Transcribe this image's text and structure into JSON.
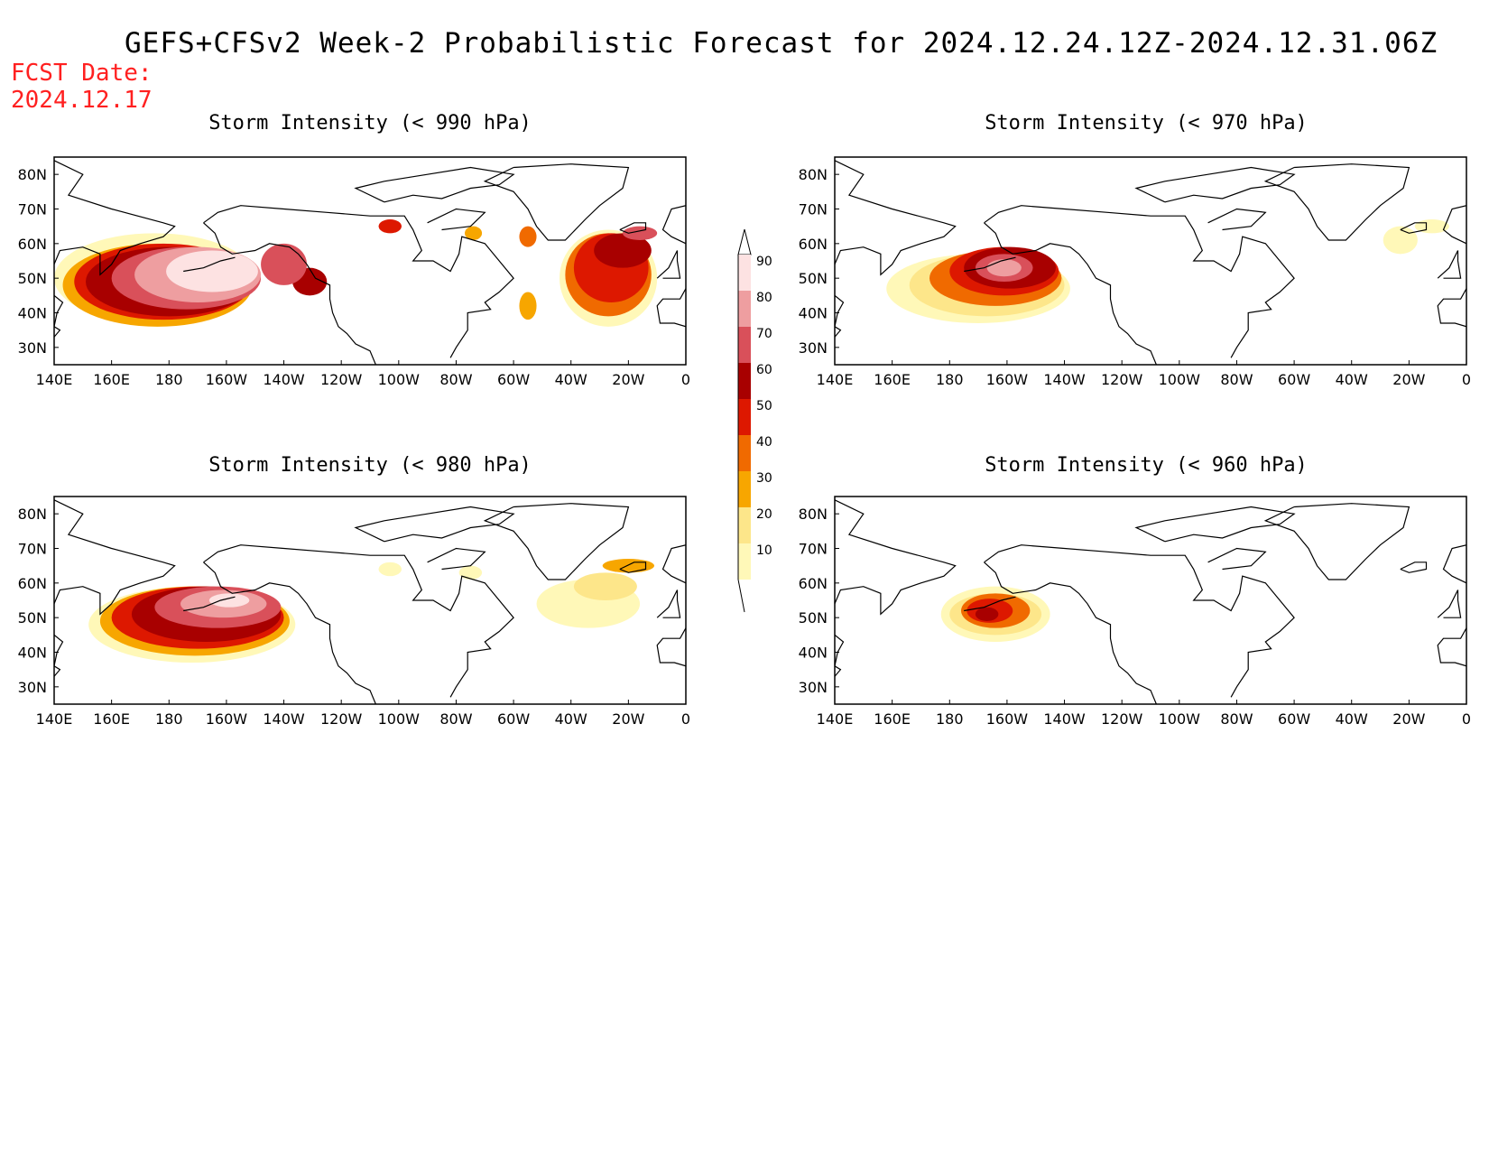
{
  "header": {
    "title": "GEFS+CFSv2 Week-2 Probabilistic Forecast for 2024.12.24.12Z-2024.12.31.06Z",
    "fcst_label": "FCST Date:",
    "fcst_date": "2024.12.17"
  },
  "axes": {
    "lon_labels": [
      "140E",
      "160E",
      "180",
      "160W",
      "140W",
      "120W",
      "100W",
      "80W",
      "60W",
      "40W",
      "20W",
      "0"
    ],
    "lat_labels": [
      "80N",
      "70N",
      "60N",
      "50N",
      "40N",
      "30N"
    ],
    "lon_range": [
      140,
      360
    ],
    "lat_range": [
      25,
      85
    ]
  },
  "colorbar": {
    "levels": [
      10,
      20,
      30,
      40,
      50,
      60,
      70,
      80,
      90
    ],
    "labels": [
      "10",
      "20",
      "30",
      "40",
      "50",
      "60",
      "70",
      "80",
      "90"
    ],
    "colors": [
      "#fff8b8",
      "#fde68a",
      "#f7a600",
      "#f06a00",
      "#dd1800",
      "#a80000",
      "#d9505a",
      "#ee9ea0",
      "#fde2e2"
    ]
  },
  "panels": [
    {
      "id": "990",
      "title": "Storm Intensity (< 990 hPa)",
      "regions": [
        {
          "level": 10,
          "lon": 175,
          "lat": 50,
          "rlon": 35,
          "rlat": 13
        },
        {
          "level": 30,
          "lon": 176,
          "lat": 48,
          "rlon": 33,
          "rlat": 12
        },
        {
          "level": 50,
          "lon": 178,
          "lat": 49,
          "rlon": 31,
          "rlat": 11
        },
        {
          "level": 60,
          "lon": 180,
          "lat": 49,
          "rlon": 29,
          "rlat": 10
        },
        {
          "level": 70,
          "lon": 186,
          "lat": 50,
          "rlon": 26,
          "rlat": 9
        },
        {
          "level": 80,
          "lon": 190,
          "lat": 51,
          "rlon": 22,
          "rlat": 8
        },
        {
          "level": 90,
          "lon": 195,
          "lat": 52,
          "rlon": 16,
          "rlat": 6
        },
        {
          "level": 60,
          "lon": 229,
          "lat": 49,
          "rlon": 6,
          "rlat": 4
        },
        {
          "level": 70,
          "lon": 220,
          "lat": 54,
          "rlon": 8,
          "rlat": 6
        },
        {
          "level": 50,
          "lon": 257,
          "lat": 65,
          "rlon": 4,
          "rlat": 2
        },
        {
          "level": 30,
          "lon": 286,
          "lat": 63,
          "rlon": 3,
          "rlat": 2
        },
        {
          "level": 40,
          "lon": 305,
          "lat": 62,
          "rlon": 3,
          "rlat": 3
        },
        {
          "level": 30,
          "lon": 305,
          "lat": 42,
          "rlon": 3,
          "rlat": 4
        },
        {
          "level": 10,
          "lon": 333,
          "lat": 50,
          "rlon": 17,
          "rlat": 14
        },
        {
          "level": 40,
          "lon": 333,
          "lat": 51,
          "rlon": 15,
          "rlat": 12
        },
        {
          "level": 50,
          "lon": 334,
          "lat": 53,
          "rlon": 13,
          "rlat": 10
        },
        {
          "level": 60,
          "lon": 338,
          "lat": 58,
          "rlon": 10,
          "rlat": 5
        },
        {
          "level": 70,
          "lon": 344,
          "lat": 63,
          "rlon": 6,
          "rlat": 2
        }
      ]
    },
    {
      "id": "970",
      "title": "Storm Intensity (< 970 hPa)",
      "regions": [
        {
          "level": 10,
          "lon": 190,
          "lat": 47,
          "rlon": 32,
          "rlat": 10
        },
        {
          "level": 20,
          "lon": 193,
          "lat": 48,
          "rlon": 27,
          "rlat": 9
        },
        {
          "level": 40,
          "lon": 196,
          "lat": 50,
          "rlon": 23,
          "rlat": 8
        },
        {
          "level": 50,
          "lon": 199,
          "lat": 52,
          "rlon": 19,
          "rlat": 7
        },
        {
          "level": 60,
          "lon": 201,
          "lat": 53,
          "rlon": 16,
          "rlat": 6
        },
        {
          "level": 70,
          "lon": 199,
          "lat": 53,
          "rlon": 10,
          "rlat": 4
        },
        {
          "level": 80,
          "lon": 199,
          "lat": 53,
          "rlon": 6,
          "rlat": 2.5
        },
        {
          "level": 10,
          "lon": 337,
          "lat": 61,
          "rlon": 6,
          "rlat": 4
        },
        {
          "level": 10,
          "lon": 348,
          "lat": 65,
          "rlon": 6,
          "rlat": 2
        }
      ]
    },
    {
      "id": "980",
      "title": "Storm Intensity (< 980 hPa)",
      "regions": [
        {
          "level": 10,
          "lon": 188,
          "lat": 48,
          "rlon": 36,
          "rlat": 11
        },
        {
          "level": 30,
          "lon": 189,
          "lat": 49,
          "rlon": 33,
          "rlat": 10
        },
        {
          "level": 50,
          "lon": 190,
          "lat": 50,
          "rlon": 30,
          "rlat": 9
        },
        {
          "level": 60,
          "lon": 193,
          "lat": 51,
          "rlon": 26,
          "rlat": 8
        },
        {
          "level": 70,
          "lon": 197,
          "lat": 53,
          "rlon": 22,
          "rlat": 6
        },
        {
          "level": 80,
          "lon": 199,
          "lat": 54,
          "rlon": 15,
          "rlat": 4
        },
        {
          "level": 90,
          "lon": 201,
          "lat": 55,
          "rlon": 7,
          "rlat": 2
        },
        {
          "level": 10,
          "lon": 257,
          "lat": 64,
          "rlon": 4,
          "rlat": 2
        },
        {
          "level": 10,
          "lon": 285,
          "lat": 63,
          "rlon": 4,
          "rlat": 2
        },
        {
          "level": 10,
          "lon": 326,
          "lat": 54,
          "rlon": 18,
          "rlat": 7
        },
        {
          "level": 20,
          "lon": 332,
          "lat": 59,
          "rlon": 11,
          "rlat": 4
        },
        {
          "level": 30,
          "lon": 340,
          "lat": 65,
          "rlon": 9,
          "rlat": 2
        }
      ]
    },
    {
      "id": "960",
      "title": "Storm Intensity (< 960 hPa)",
      "regions": [
        {
          "level": 10,
          "lon": 196,
          "lat": 51,
          "rlon": 19,
          "rlat": 8
        },
        {
          "level": 20,
          "lon": 196,
          "lat": 51,
          "rlon": 16,
          "rlat": 6
        },
        {
          "level": 40,
          "lon": 196,
          "lat": 52,
          "rlon": 12,
          "rlat": 5
        },
        {
          "level": 50,
          "lon": 194,
          "lat": 52,
          "rlon": 8,
          "rlat": 3.5
        },
        {
          "level": 60,
          "lon": 193,
          "lat": 51,
          "rlon": 4,
          "rlat": 2
        }
      ]
    }
  ]
}
